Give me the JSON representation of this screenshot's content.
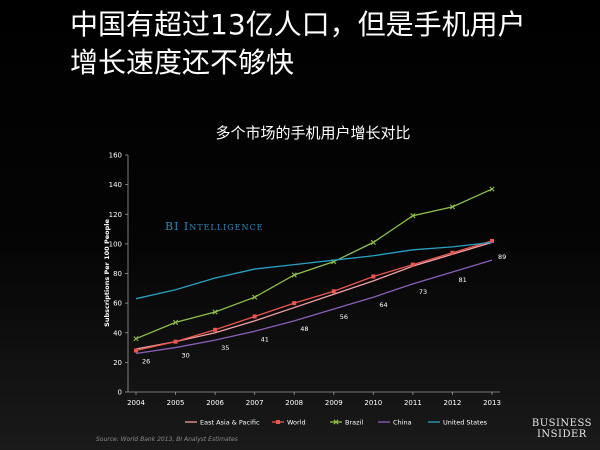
{
  "headline": {
    "line1": "中国有超过13亿人口，但是手机用户",
    "line2": "增长速度还不够快"
  },
  "watermark": "BI Intelligence",
  "source": "Source: World Bank 2013, BI Analyst Estimates",
  "brand": {
    "line1": "BUSINESS",
    "line2": "INSIDER"
  },
  "chart_data": {
    "type": "line",
    "title": "多个市场的手机用户增长对比",
    "xlabel": "",
    "ylabel": "Subscriptions Per 100 People",
    "x": [
      2004,
      2005,
      2006,
      2007,
      2008,
      2009,
      2010,
      2011,
      2012,
      2013
    ],
    "ylim": [
      0,
      160
    ],
    "yticks": [
      0,
      20,
      40,
      60,
      80,
      100,
      120,
      140,
      160
    ],
    "grid": false,
    "legend": "bottom",
    "series": [
      {
        "name": "East Asia & Pacific",
        "color": "#f2a0a6",
        "marker": "none",
        "values": [
          29,
          34,
          40,
          48,
          57,
          66,
          75,
          85,
          93,
          101
        ]
      },
      {
        "name": "World",
        "color": "#e8564e",
        "marker": "square",
        "values": [
          28,
          34,
          42,
          51,
          60,
          68,
          78,
          86,
          94,
          102
        ]
      },
      {
        "name": "Brazil",
        "color": "#8fc04a",
        "marker": "x",
        "values": [
          36,
          47,
          54,
          64,
          79,
          88,
          101,
          119,
          125,
          137
        ]
      },
      {
        "name": "China",
        "color": "#8a5fb8",
        "marker": "none",
        "values": [
          26,
          30,
          35,
          41,
          48,
          56,
          64,
          73,
          81,
          89
        ],
        "labels": [
          "26",
          "30",
          "35",
          "41",
          "48",
          "56",
          "64",
          "73",
          "81",
          "89"
        ]
      },
      {
        "name": "United States",
        "color": "#2aa0c2",
        "marker": "none",
        "values": [
          63,
          69,
          77,
          83,
          86,
          89,
          92,
          96,
          98,
          101
        ]
      }
    ]
  }
}
